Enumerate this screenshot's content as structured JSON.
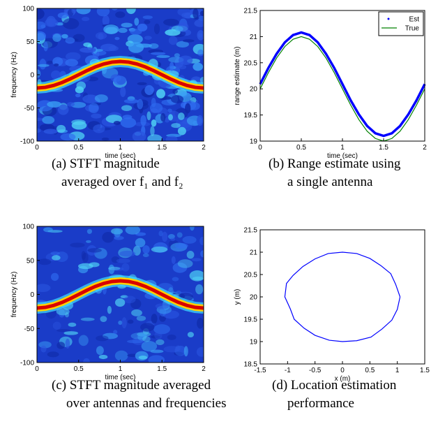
{
  "chart_data": [
    {
      "type": "spectrogram",
      "xlabel": "time (sec)",
      "ylabel": "frequency (Hz)",
      "xlim": [
        0,
        2
      ],
      "ylim": [
        -100,
        100
      ],
      "xticks": [
        0,
        0.5,
        1,
        1.5,
        2
      ],
      "yticks": [
        -100,
        -50,
        0,
        50,
        100
      ],
      "x": [
        0,
        0.1,
        0.2,
        0.3,
        0.4,
        0.5,
        0.6,
        0.7,
        0.8,
        0.9,
        1,
        1.1,
        1.2,
        1.3,
        1.4,
        1.5,
        1.6,
        1.7,
        1.8,
        1.9,
        2
      ],
      "values": [
        -20,
        -19.02,
        -16.18,
        -11.76,
        -6.18,
        0,
        6.18,
        11.76,
        16.18,
        19.02,
        20,
        19.02,
        16.18,
        11.76,
        6.18,
        0,
        -6.18,
        -11.76,
        -16.18,
        -19.02,
        -20
      ],
      "caption": [
        "(a) STFT magnitude",
        "averaged over f₁ and f₂"
      ]
    },
    {
      "type": "line",
      "xlabel": "time (sec)",
      "ylabel": "range estimate (m)",
      "xlim": [
        0,
        2
      ],
      "ylim": [
        19,
        21.5
      ],
      "xticks": [
        0,
        0.5,
        1,
        1.5,
        2
      ],
      "yticks": [
        19,
        19.5,
        20,
        20.5,
        21,
        21.5
      ],
      "legend": "upper right",
      "x": [
        0,
        0.1,
        0.2,
        0.3,
        0.4,
        0.5,
        0.6,
        0.7,
        0.8,
        0.9,
        1,
        1.1,
        1.2,
        1.3,
        1.4,
        1.5,
        1.6,
        1.7,
        1.8,
        1.9,
        2
      ],
      "series": [
        {
          "name": "Est",
          "color": "#0000ff",
          "values": [
            20.09,
            20.4,
            20.67,
            20.89,
            21.03,
            21.08,
            21.03,
            20.89,
            20.67,
            20.4,
            20.09,
            19.78,
            19.51,
            19.29,
            19.15,
            19.1,
            19.15,
            19.29,
            19.51,
            19.78,
            20.09
          ]
        },
        {
          "name": "True",
          "color": "#008000",
          "values": [
            20,
            20.31,
            20.59,
            20.81,
            20.95,
            21,
            20.95,
            20.81,
            20.59,
            20.31,
            20,
            19.69,
            19.41,
            19.19,
            19.05,
            19,
            19.05,
            19.19,
            19.41,
            19.69,
            20
          ]
        }
      ],
      "caption": [
        "(b) Range estimate using",
        "a single antenna"
      ]
    },
    {
      "type": "spectrogram",
      "xlabel": "time (sec)",
      "ylabel": "frequency (Hz)",
      "xlim": [
        0,
        2
      ],
      "ylim": [
        -100,
        100
      ],
      "xticks": [
        0,
        0.5,
        1,
        1.5,
        2
      ],
      "yticks": [
        -100,
        -50,
        0,
        50,
        100
      ],
      "x": [
        0,
        0.1,
        0.2,
        0.3,
        0.4,
        0.5,
        0.6,
        0.7,
        0.8,
        0.9,
        1,
        1.1,
        1.2,
        1.3,
        1.4,
        1.5,
        1.6,
        1.7,
        1.8,
        1.9,
        2
      ],
      "values": [
        -20,
        -19.02,
        -16.18,
        -11.76,
        -6.18,
        0,
        6.18,
        11.76,
        16.18,
        19.02,
        20,
        19.02,
        16.18,
        11.76,
        6.18,
        0,
        -6.18,
        -11.76,
        -16.18,
        -19.02,
        -20
      ],
      "caption": [
        "(c) STFT magnitude averaged",
        "over antennas and frequencies"
      ]
    },
    {
      "type": "path",
      "xlabel": "x (m)",
      "ylabel": "y (m)",
      "xlim": [
        -1.5,
        1.5
      ],
      "ylim": [
        18.5,
        21.5
      ],
      "xticks": [
        -1.5,
        -1,
        -0.5,
        0,
        0.5,
        1,
        1.5
      ],
      "yticks": [
        18.5,
        19,
        19.5,
        20,
        20.5,
        21,
        21.5
      ],
      "color": "#0000ff",
      "x": [
        1.05,
        0.97,
        0.88,
        0.7,
        0.5,
        0.26,
        0,
        -0.26,
        -0.5,
        -0.72,
        -0.9,
        -1.02,
        -1.05,
        -0.95,
        -0.88,
        -0.7,
        -0.5,
        -0.24,
        0,
        0.26,
        0.52,
        0.72,
        0.9,
        1,
        1.05
      ],
      "values": [
        20,
        20.28,
        20.52,
        20.7,
        20.86,
        20.97,
        21,
        20.97,
        20.85,
        20.68,
        20.48,
        20.3,
        20,
        19.73,
        19.5,
        19.3,
        19.14,
        19.03,
        19,
        19.02,
        19.1,
        19.28,
        19.48,
        19.72,
        20
      ],
      "caption": [
        "(d) Location estimation",
        "performance"
      ]
    }
  ]
}
